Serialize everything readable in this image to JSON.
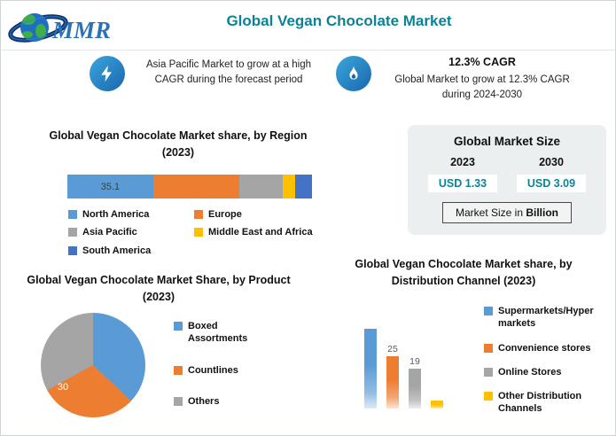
{
  "colors": {
    "accent": "#0b8397",
    "icon_blue": "#1a66ad",
    "panel_bg": "#ebeff0"
  },
  "header": {
    "title": "Global Vegan Chocolate Market",
    "logo_text": "MMR"
  },
  "callouts": {
    "asia_pacific": {
      "text": "Asia Pacific Market to grow at a high CAGR during the forecast period"
    },
    "cagr": {
      "title": "12.3% CAGR",
      "text": "Global Market to grow at 12.3% CAGR during 2024-2030"
    }
  },
  "market_size": {
    "title": "Global Market Size",
    "years": [
      "2023",
      "2030"
    ],
    "values": [
      "USD 1.33",
      "USD 3.09"
    ],
    "note_prefix": "Market Size in ",
    "note_bold": "Billion"
  },
  "chart_data": [
    {
      "type": "bar",
      "variant": "horizontal-stacked",
      "title": "Global Vegan Chocolate Market share, by Region (2023)",
      "categories": [
        "North America",
        "Europe",
        "Asia Pacific",
        "Middle East and Africa",
        "South America"
      ],
      "values": [
        35.1,
        35.3,
        17.5,
        5.1,
        7.0
      ],
      "colors": [
        "#5B9BD5",
        "#ED7D31",
        "#A5A5A5",
        "#FFC000",
        "#4472C4"
      ],
      "data_label": "35.1",
      "legend_position": "bottom"
    },
    {
      "type": "pie",
      "title": "Global Vegan Chocolate Market Share, by Product (2023)",
      "categories": [
        "Boxed Assortments",
        "Countlines",
        "Others"
      ],
      "values": [
        37,
        30,
        33
      ],
      "colors": [
        "#5B9BD5",
        "#ED7D31",
        "#A5A5A5"
      ],
      "data_label": "30",
      "legend_position": "right"
    },
    {
      "type": "bar",
      "variant": "vertical",
      "title": "Global Vegan Chocolate Market share, by Distribution Channel (2023)",
      "categories": [
        "Supermarkets/Hyper markets",
        "Convenience stores",
        "Online Stores",
        "Other Distribution Channels"
      ],
      "values": [
        38,
        25,
        19,
        4
      ],
      "labels": [
        "",
        "25",
        "19",
        ""
      ],
      "colors": [
        "#5B9BD5",
        "#ED7D31",
        "#A5A5A5",
        "#FFC000"
      ],
      "legend_position": "right"
    }
  ]
}
